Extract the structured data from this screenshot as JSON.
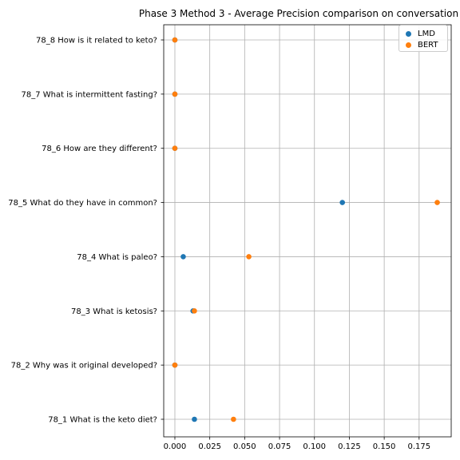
{
  "chart_data": {
    "type": "scatter",
    "title": "Phase 3 Method 3 - Average Precision comparison on conversation",
    "xlabel": "",
    "ylabel": "",
    "xlim": [
      -0.008,
      0.198
    ],
    "xticks": [
      "0.000",
      "0.025",
      "0.050",
      "0.075",
      "0.100",
      "0.125",
      "0.150",
      "0.175"
    ],
    "categories": [
      "78_1 What is the keto diet?",
      "78_2 Why was it original developed?",
      "78_3 What is ketosis?",
      "78_4 What is paleo?",
      "78_5 What do they have in common?",
      "78_6 How are they different?",
      "78_7 What is intermittent fasting?",
      "78_8 How is it related to keto?"
    ],
    "series": [
      {
        "name": "LMD",
        "color": "#1f77b4",
        "values": [
          0.014,
          0.0,
          0.013,
          0.006,
          0.12,
          0.0,
          0.0,
          0.0
        ]
      },
      {
        "name": "BERT",
        "color": "#ff7f0e",
        "values": [
          0.042,
          0.0,
          0.014,
          0.053,
          0.188,
          0.0,
          0.0,
          0.0
        ]
      }
    ],
    "grid": true,
    "legend_position": "top-right"
  }
}
